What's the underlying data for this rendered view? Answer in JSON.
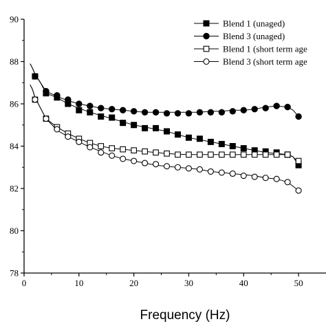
{
  "chart_data": {
    "type": "line",
    "title": "",
    "xlabel": "Frequency (Hz)",
    "ylabel": "",
    "xlim": [
      0,
      55
    ],
    "ylim": [
      78,
      90
    ],
    "x_ticks": [
      0,
      10,
      20,
      30,
      40,
      50
    ],
    "y_ticks": [
      78,
      80,
      82,
      84,
      86,
      88,
      90
    ],
    "grid": false,
    "legend_position": "top-right",
    "series": [
      {
        "name": "Blend 1 (unaged)",
        "marker": "square-filled",
        "curve_x": [
          1.1,
          1.5,
          2,
          3,
          4,
          6,
          8,
          10,
          12,
          14,
          16,
          18,
          20,
          22,
          24,
          26,
          28,
          30,
          32,
          34,
          36,
          38,
          40,
          42,
          44,
          46,
          48,
          49,
          50
        ],
        "curve_y": [
          87.9,
          87.7,
          87.4,
          87.0,
          86.5,
          86.3,
          86.0,
          85.8,
          85.6,
          85.45,
          85.3,
          85.15,
          85.0,
          84.9,
          84.8,
          84.7,
          84.55,
          84.4,
          84.3,
          84.2,
          84.1,
          84.0,
          83.9,
          83.8,
          83.7,
          83.65,
          83.6,
          83.5,
          83.1
        ],
        "x": [
          2,
          4,
          6,
          8,
          10,
          12,
          14,
          16,
          18,
          20,
          22,
          24,
          26,
          28,
          30,
          32,
          34,
          36,
          38,
          40,
          42,
          44,
          46,
          48,
          50
        ],
        "values": [
          87.3,
          86.5,
          86.3,
          86.0,
          85.7,
          85.6,
          85.4,
          85.35,
          85.1,
          85.0,
          84.85,
          84.85,
          84.7,
          84.55,
          84.4,
          84.35,
          84.2,
          84.1,
          84.0,
          83.9,
          83.8,
          83.75,
          83.7,
          83.6,
          83.1
        ]
      },
      {
        "name": "Blend 3 (unaged)",
        "marker": "circle-filled",
        "curve_x": [
          1.1,
          1.5,
          2,
          3,
          4,
          6,
          8,
          10,
          12,
          14,
          16,
          18,
          20,
          22,
          24,
          26,
          28,
          30,
          32,
          34,
          36,
          38,
          40,
          42,
          44,
          46,
          48,
          49,
          50
        ],
        "curve_y": [
          87.9,
          87.7,
          87.4,
          87.0,
          86.6,
          86.35,
          86.15,
          86.0,
          85.9,
          85.8,
          85.75,
          85.7,
          85.65,
          85.6,
          85.6,
          85.6,
          85.6,
          85.6,
          85.6,
          85.65,
          85.65,
          85.7,
          85.7,
          85.75,
          85.85,
          85.9,
          85.85,
          85.7,
          85.4
        ],
        "x": [
          2,
          4,
          6,
          8,
          10,
          12,
          14,
          16,
          18,
          20,
          22,
          24,
          26,
          28,
          30,
          32,
          34,
          36,
          38,
          40,
          42,
          44,
          46,
          48,
          50
        ],
        "values": [
          87.3,
          86.6,
          86.4,
          86.2,
          86.0,
          85.9,
          85.8,
          85.75,
          85.7,
          85.65,
          85.6,
          85.6,
          85.55,
          85.55,
          85.55,
          85.6,
          85.6,
          85.6,
          85.65,
          85.7,
          85.75,
          85.8,
          85.9,
          85.85,
          85.4
        ]
      },
      {
        "name": "Blend 1 (short term age",
        "marker": "square-open",
        "curve_x": [
          1.1,
          1.5,
          2,
          3,
          4,
          6,
          8,
          10,
          12,
          14,
          16,
          18,
          20,
          22,
          24,
          26,
          28,
          30,
          32,
          34,
          36,
          38,
          40,
          42,
          44,
          46,
          48,
          49,
          50
        ],
        "curve_y": [
          86.9,
          86.7,
          86.3,
          85.8,
          85.3,
          84.9,
          84.6,
          84.35,
          84.15,
          84.0,
          83.9,
          83.85,
          83.8,
          83.75,
          83.7,
          83.65,
          83.62,
          83.6,
          83.6,
          83.6,
          83.6,
          83.6,
          83.6,
          83.6,
          83.6,
          83.6,
          83.6,
          83.5,
          83.2
        ],
        "x": [
          2,
          4,
          6,
          8,
          10,
          12,
          14,
          16,
          18,
          20,
          22,
          24,
          26,
          28,
          30,
          32,
          34,
          36,
          38,
          40,
          42,
          44,
          46,
          48,
          50
        ],
        "values": [
          86.2,
          85.3,
          84.9,
          84.6,
          84.35,
          84.15,
          84.0,
          83.9,
          83.85,
          83.8,
          83.75,
          83.7,
          83.65,
          83.6,
          83.6,
          83.6,
          83.6,
          83.6,
          83.6,
          83.6,
          83.6,
          83.6,
          83.6,
          83.6,
          83.3
        ]
      },
      {
        "name": "Blend 3 (short term age",
        "marker": "circle-open",
        "curve_x": [
          1.1,
          1.5,
          2,
          3,
          4,
          6,
          8,
          10,
          12,
          14,
          16,
          18,
          20,
          22,
          24,
          26,
          28,
          30,
          32,
          34,
          36,
          38,
          40,
          42,
          44,
          46,
          48,
          49,
          50
        ],
        "curve_y": [
          86.9,
          86.7,
          86.3,
          85.8,
          85.3,
          84.75,
          84.45,
          84.2,
          83.95,
          83.75,
          83.55,
          83.4,
          83.3,
          83.2,
          83.1,
          83.05,
          83.0,
          82.95,
          82.9,
          82.8,
          82.75,
          82.7,
          82.65,
          82.6,
          82.5,
          82.45,
          82.3,
          82.1,
          81.9
        ],
        "x": [
          2,
          4,
          6,
          8,
          10,
          12,
          14,
          16,
          18,
          20,
          22,
          24,
          26,
          28,
          30,
          32,
          34,
          36,
          38,
          40,
          42,
          44,
          46,
          48,
          50
        ],
        "values": [
          86.2,
          85.3,
          84.8,
          84.45,
          84.2,
          83.95,
          83.7,
          83.55,
          83.4,
          83.3,
          83.2,
          83.15,
          83.05,
          83.0,
          82.95,
          82.9,
          82.8,
          82.75,
          82.7,
          82.6,
          82.55,
          82.5,
          82.45,
          82.3,
          81.9
        ]
      }
    ]
  }
}
